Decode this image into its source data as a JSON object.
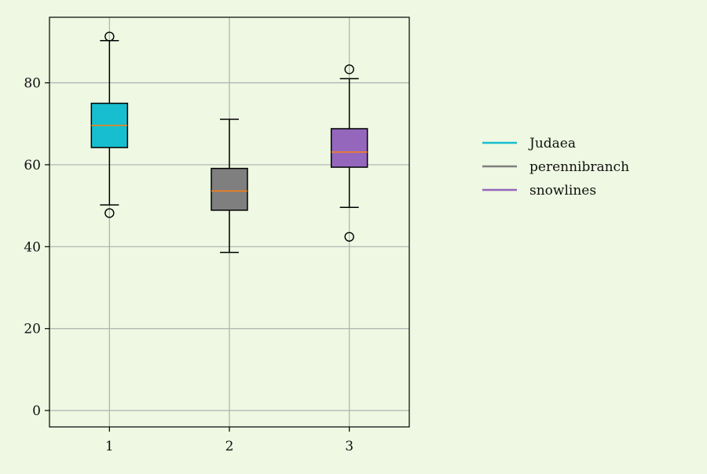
{
  "colors": {
    "background": "#eef8e2",
    "grid": "#b0b0b0",
    "axis": "#000000",
    "median": "#ff7f0e"
  },
  "chart_data": {
    "type": "boxplot",
    "title": "",
    "xlabel": "",
    "ylabel": "",
    "categories": [
      "1",
      "2",
      "3"
    ],
    "x_ticks": [
      "1",
      "2",
      "3"
    ],
    "y_ticks": [
      0,
      20,
      40,
      60,
      80
    ],
    "y_tick_labels": [
      "0",
      "20",
      "40",
      "60",
      "80"
    ],
    "xlim": [
      0.5,
      3.5
    ],
    "ylim": [
      -4,
      96
    ],
    "grid": true,
    "legend_position": "right",
    "series": [
      {
        "name": "Judaea",
        "color": "#17becf",
        "x": 1,
        "whisker_low": 50.2,
        "q1": 64.2,
        "median": 69.6,
        "q3": 75.0,
        "whisker_high": 90.3,
        "outliers": [
          91.3,
          48.2
        ]
      },
      {
        "name": "perennibranch",
        "color": "#7f7f7f",
        "x": 2,
        "whisker_low": 38.6,
        "q1": 48.9,
        "median": 53.6,
        "q3": 59.1,
        "whisker_high": 71.1,
        "outliers": []
      },
      {
        "name": "snowlines",
        "color": "#9467bd",
        "x": 3,
        "whisker_low": 49.6,
        "q1": 59.4,
        "median": 63.1,
        "q3": 68.8,
        "whisker_high": 81.0,
        "outliers": [
          83.3,
          42.4
        ]
      }
    ]
  }
}
